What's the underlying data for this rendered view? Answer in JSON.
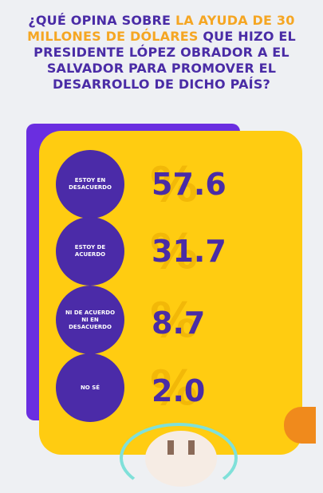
{
  "title": {
    "part1": "¿QUÉ OPINA SOBRE ",
    "highlight": "LA AYUDA DE 30 MILLONES DE DÓLARES",
    "part2": " QUE HIZO EL PRESIDENTE LÓPEZ OBRADOR A EL SALVADOR PARA PROMOVER EL DESARROLLO DE DICHO PAÍS?"
  },
  "percent_symbol": "%",
  "colors": {
    "title": "#4a2ca6",
    "highlight": "#f5a623",
    "card": "#ffcc11",
    "accent_back": "#6a2ee0",
    "circle": "#4b2ba8"
  },
  "chart_data": {
    "type": "bar",
    "categories": [
      "ESTOY EN DESACUERDO",
      "ESTOY DE ACUERDO",
      "NI DE ACUERDO NI EN DESACUERDO",
      "NO SÉ"
    ],
    "values": [
      57.6,
      31.7,
      8.7,
      2.0
    ],
    "value_labels": [
      "57.6",
      "31.7",
      "8.7",
      "2.0"
    ]
  }
}
